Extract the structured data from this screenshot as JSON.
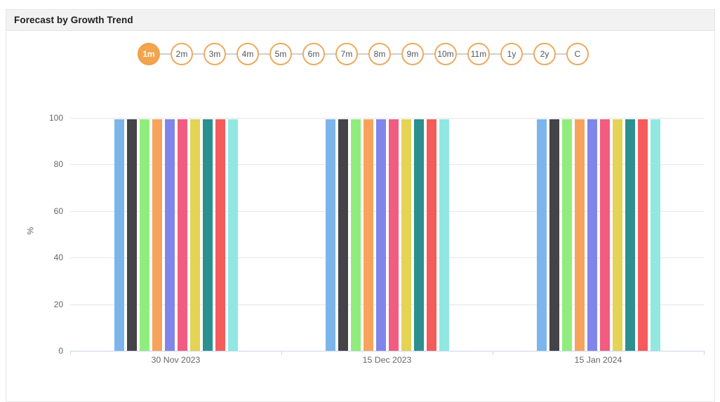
{
  "header": {
    "title": "Forecast by Growth Trend"
  },
  "timeline": {
    "items": [
      {
        "label": "1m",
        "selected": true
      },
      {
        "label": "2m",
        "selected": false
      },
      {
        "label": "3m",
        "selected": false
      },
      {
        "label": "4m",
        "selected": false
      },
      {
        "label": "5m",
        "selected": false
      },
      {
        "label": "6m",
        "selected": false
      },
      {
        "label": "7m",
        "selected": false
      },
      {
        "label": "8m",
        "selected": false
      },
      {
        "label": "9m",
        "selected": false
      },
      {
        "label": "10m",
        "selected": false
      },
      {
        "label": "11m",
        "selected": false
      },
      {
        "label": "1y",
        "selected": false
      },
      {
        "label": "2y",
        "selected": false
      },
      {
        "label": "C",
        "selected": false
      }
    ]
  },
  "chart_data": {
    "type": "bar",
    "title": "",
    "categories": [
      "30 Nov 2023",
      "15 Dec 2023",
      "15 Jan 2024"
    ],
    "series": [
      {
        "color": "#7cb5ec",
        "values": [
          100,
          100,
          100
        ]
      },
      {
        "color": "#434348",
        "values": [
          100,
          100,
          100
        ]
      },
      {
        "color": "#90ed7d",
        "values": [
          100,
          100,
          100
        ]
      },
      {
        "color": "#f7a35c",
        "values": [
          100,
          100,
          100
        ]
      },
      {
        "color": "#8085e9",
        "values": [
          100,
          100,
          100
        ]
      },
      {
        "color": "#f15c80",
        "values": [
          100,
          100,
          100
        ]
      },
      {
        "color": "#e4d354",
        "values": [
          100,
          100,
          100
        ]
      },
      {
        "color": "#2b908f",
        "values": [
          100,
          100,
          100
        ]
      },
      {
        "color": "#f45b5b",
        "values": [
          100,
          100,
          100
        ]
      },
      {
        "color": "#91e8e1",
        "values": [
          100,
          100,
          100
        ]
      }
    ],
    "xlabel": "",
    "ylabel": "%",
    "ylim": [
      0,
      100
    ],
    "yticks": [
      0,
      20,
      40,
      60,
      80,
      100
    ],
    "grid": true,
    "legend": "none"
  },
  "colors": {
    "selected_pill_bg": "#f4a44c",
    "pill_border": "#ecaa5e",
    "header_bg": "#f2f2f3",
    "grid_line": "#e6e6e6",
    "axis_line": "#ccd6eb",
    "axis_text": "#666666"
  }
}
